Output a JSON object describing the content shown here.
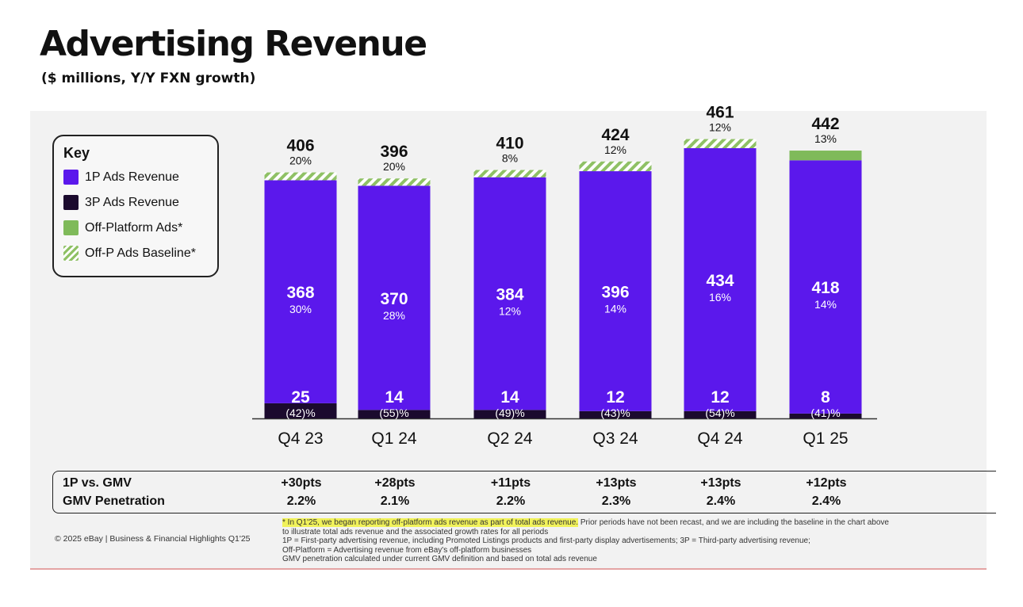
{
  "page": {
    "title": "Advertising Revenue",
    "subtitle": "($ millions, Y/Y FXN growth)"
  },
  "key": {
    "title": "Key",
    "items": [
      {
        "label": "1P Ads Revenue",
        "color": "#5b18ec"
      },
      {
        "label": "3P Ads Revenue",
        "color": "#1b0a2e"
      },
      {
        "label": "Off-Platform Ads*",
        "color": "#7fba5a"
      },
      {
        "label": "Off-P Ads Baseline*",
        "color": "#8fc165"
      }
    ]
  },
  "chart_data": {
    "type": "bar",
    "stacked": true,
    "categories": [
      "Q4 23",
      "Q1 24",
      "Q2 24",
      "Q3 24",
      "Q4 24",
      "Q1 25"
    ],
    "totals": [
      "406",
      "396",
      "410",
      "424",
      "461",
      "442"
    ],
    "total_growth": [
      "20%",
      "20%",
      "8%",
      "12%",
      "12%",
      "13%"
    ],
    "series": [
      {
        "name": "3P Ads Revenue",
        "values": [
          25,
          14,
          14,
          12,
          12,
          8
        ],
        "growth": [
          "(42)%",
          "(55)%",
          "(49)%",
          "(43)%",
          "(54)%",
          "(41)%"
        ],
        "color": "#1b0a2e"
      },
      {
        "name": "1P Ads Revenue",
        "values": [
          368,
          370,
          384,
          396,
          434,
          418
        ],
        "growth": [
          "30%",
          "28%",
          "12%",
          "14%",
          "16%",
          "14%"
        ],
        "color": "#5b18ec"
      },
      {
        "name": "Off-P Ads Baseline*",
        "values": [
          13,
          12,
          12,
          16,
          15,
          0
        ],
        "color": "#8fc165",
        "pattern": "hatched"
      },
      {
        "name": "Off-Platform Ads*",
        "values": [
          0,
          0,
          0,
          0,
          0,
          16
        ],
        "color": "#7fba5a"
      }
    ],
    "ylim": [
      0,
      470
    ]
  },
  "table": {
    "rows": [
      {
        "label": "1P vs. GMV",
        "values": [
          "+30pts",
          "+28pts",
          "+11pts",
          "+13pts",
          "+13pts",
          "+12pts"
        ]
      },
      {
        "label": "GMV Penetration",
        "values": [
          "2.2%",
          "2.1%",
          "2.2%",
          "2.3%",
          "2.4%",
          "2.4%"
        ]
      }
    ]
  },
  "footer": {
    "copyright": "© 2025 eBay | Business & Financial Highlights Q1'25",
    "note_highlight": "* In Q1'25, we began reporting off-platform ads revenue as part of total ads revenue.",
    "note_rest": " Prior periods have not been recast, and we are including the baseline in the chart above",
    "note_line2": "to illustrate total ads revenue and the associated growth rates for all periods",
    "note_line3": "1P = First-party advertising revenue, including Promoted Listings products and first-party display advertisements; 3P = Third-party advertising revenue;",
    "note_line4": "Off-Platform = Advertising revenue from eBay's off-platform businesses",
    "note_line5": "GMV penetration calculated under current GMV definition and based on total ads revenue"
  }
}
